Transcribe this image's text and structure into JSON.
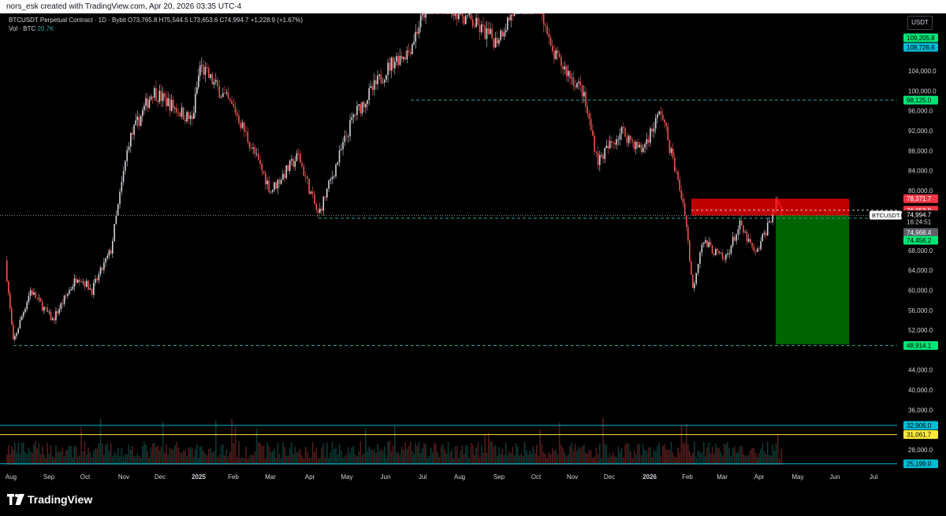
{
  "header": {
    "attribution": "nors_esk created with TradingView.com, Apr 20, 2026 03:35 UTC-4"
  },
  "legend": {
    "symbol": "BTCUSDT Perpetual Contract · 1D · Bybit",
    "ohlc": "O73,765.8 H75,544.5 L73,653.6 C74,994.7 +1,228.9 (+1.67%)",
    "volume_label": "Vol · BTC",
    "volume_value": "20.7K"
  },
  "currency_button": "USDT",
  "brand": "TradingView",
  "colors": {
    "background": "#000000",
    "up_candle": "#d1d4dc",
    "down_candle": "#ef5350",
    "volume_up": "#26a69a",
    "volume_down": "#ef5350",
    "support_line": "#26a69a",
    "cyan_line": "#00bcd4",
    "yellow_line": "#ffeb3b",
    "stop_zone": "#ff0000",
    "target_zone": "#006400",
    "label_green": "#00e676",
    "label_cyan": "#00bcd4",
    "label_red": "#f23645",
    "label_yellow": "#ffeb3b"
  },
  "chart_data": {
    "type": "candlestick",
    "symbol_tag": "BTCUSDT.P",
    "countdown": "16:24:51",
    "last_price": 74994.7,
    "x_ticks": [
      "Aug",
      "Sep",
      "Oct",
      "Nov",
      "Dec",
      "2025",
      "Feb",
      "Mar",
      "Apr",
      "May",
      "Jun",
      "Jul",
      "Aug",
      "Sep",
      "Oct",
      "Nov",
      "Dec",
      "2026",
      "Feb",
      "Mar",
      "Apr",
      "May",
      "Jun",
      "Jul"
    ],
    "y_ticks": [
      "104,000.0",
      "100,000.0",
      "96,000.0",
      "92,000.0",
      "88,000.0",
      "84,000.0",
      "80,000.0",
      "68,000.0",
      "64,000.0",
      "60,000.0",
      "56,000.0",
      "52,000.0",
      "44,000.0",
      "40,000.0",
      "36,000.0",
      "28,000.0"
    ],
    "price_labels": [
      {
        "text": "USDT",
        "kind": "currency"
      },
      {
        "text": "109,205.8",
        "kind": "green"
      },
      {
        "text": "108,726.6",
        "kind": "cyan"
      },
      {
        "text": "98,125.0",
        "kind": "green"
      },
      {
        "text": "78,371.7",
        "kind": "red"
      },
      {
        "text": "76,053.9",
        "kind": "red"
      },
      {
        "text": "74,994.7",
        "kind": "last"
      },
      {
        "text": "74,968.4",
        "kind": "gray"
      },
      {
        "text": "74,456.2",
        "kind": "green"
      },
      {
        "text": "49,160.1",
        "kind": "dark"
      },
      {
        "text": "48,914.1",
        "kind": "green"
      },
      {
        "text": "32,906.0",
        "kind": "cyan"
      },
      {
        "text": "31,061.7",
        "kind": "yellow"
      },
      {
        "text": "25,199.0",
        "kind": "cyan"
      }
    ],
    "horizontal_levels": [
      98125.0,
      74456.2,
      48914.1
    ],
    "volume_levels": [
      32906.0,
      31061.7,
      25199.0
    ],
    "position": {
      "entry": 74994.7,
      "stop": 78371.7,
      "target": 49160.1
    },
    "price_path_anchors": [
      [
        "Aug",
        66000
      ],
      [
        "early-Aug",
        49500
      ],
      [
        "mid-Aug",
        60000
      ],
      [
        "Sep",
        54000
      ],
      [
        "Oct",
        63000
      ],
      [
        "Oct",
        60000
      ],
      [
        "Nov",
        68000
      ],
      [
        "mid-Nov",
        90000
      ],
      [
        "Dec",
        100000
      ],
      [
        "2025",
        94000
      ],
      [
        "Jan",
        105000
      ],
      [
        "Feb",
        96000
      ],
      [
        "Mar",
        80000
      ],
      [
        "Mar",
        87000
      ],
      [
        "Apr",
        75000
      ],
      [
        "May",
        95000
      ],
      [
        "Jun",
        106000
      ],
      [
        "Jul",
        108000
      ],
      [
        "mid-Jul",
        120000
      ],
      [
        "Aug",
        115000
      ],
      [
        "Sep",
        110000
      ],
      [
        "Oct",
        123000
      ],
      [
        "Oct",
        108000
      ],
      [
        "Nov",
        100000
      ],
      [
        "Dec",
        86000
      ],
      [
        "Dec",
        92000
      ],
      [
        "2026",
        88000
      ],
      [
        "Jan",
        96000
      ],
      [
        "Feb",
        76000
      ],
      [
        "Feb",
        60000
      ],
      [
        "Feb",
        70000
      ],
      [
        "Mar",
        66000
      ],
      [
        "Mar",
        73000
      ],
      [
        "Apr",
        67000
      ],
      [
        "Apr",
        78000
      ],
      [
        "Apr",
        74994.7
      ]
    ]
  }
}
